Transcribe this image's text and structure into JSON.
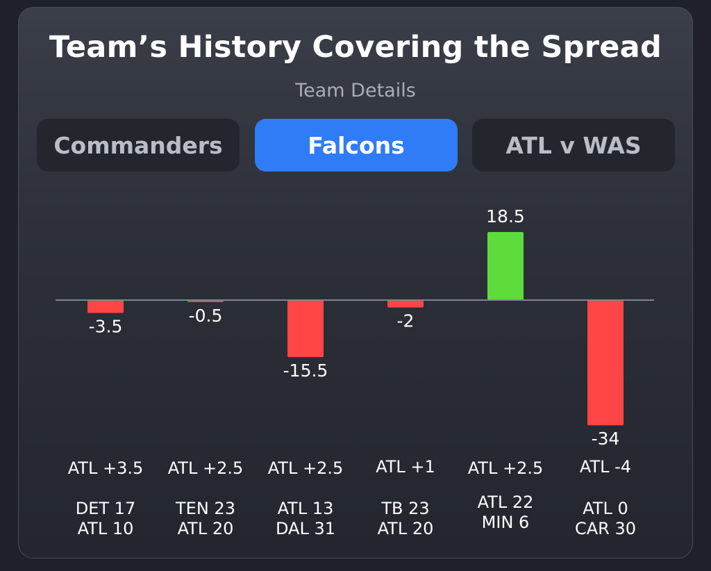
{
  "header": {
    "title": "Team’s History Covering the Spread",
    "subtitle": "Team Details"
  },
  "tabs": [
    {
      "label": "Commanders",
      "active": false
    },
    {
      "label": "Falcons",
      "active": true
    },
    {
      "label": "ATL v WAS",
      "active": false
    }
  ],
  "colors": {
    "positive": "#5ddc3c",
    "negative": "#ff4545",
    "active_tab": "#2f7cf6",
    "baseline": "#7e8591"
  },
  "chart_data": {
    "type": "bar",
    "values": [
      -3.5,
      -0.5,
      -15.5,
      -2,
      18.5,
      -34
    ],
    "value_labels": [
      "-3.5",
      "-0.5",
      "-15.5",
      "-2",
      "18.5",
      "-34"
    ],
    "spreads": [
      "ATL +3.5",
      "ATL +2.5",
      "ATL +2.5",
      "ATL +1",
      "ATL +2.5",
      "ATL -4"
    ],
    "scores": [
      [
        "DET 17",
        "ATL 10"
      ],
      [
        "TEN 23",
        "ATL 20"
      ],
      [
        "ATL 13",
        "DAL 31"
      ],
      [
        "TB 23",
        "ATL 20"
      ],
      [
        "ATL 22",
        "MIN 6"
      ],
      [
        "ATL 0",
        "CAR 30"
      ]
    ],
    "title": "Team’s History Covering the Spread",
    "xlabel": "",
    "ylabel": "",
    "ylim": [
      -34,
      18.5
    ],
    "grid": false
  }
}
